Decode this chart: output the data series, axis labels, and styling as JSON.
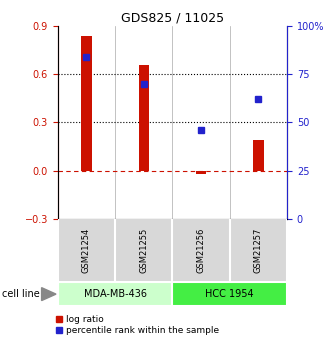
{
  "title": "GDS825 / 11025",
  "samples": [
    "GSM21254",
    "GSM21255",
    "GSM21256",
    "GSM21257"
  ],
  "log_ratios": [
    0.84,
    0.66,
    -0.02,
    0.19
  ],
  "percentile_ranks": [
    84,
    70,
    46,
    62
  ],
  "cell_lines": [
    {
      "label": "MDA-MB-436",
      "samples": [
        0,
        1
      ],
      "color": "#ccffcc"
    },
    {
      "label": "HCC 1954",
      "samples": [
        2,
        3
      ],
      "color": "#44ee44"
    }
  ],
  "bar_color": "#cc1100",
  "dot_color": "#2222cc",
  "ylim_left": [
    -0.3,
    0.9
  ],
  "ylim_right": [
    0,
    100
  ],
  "yticks_left": [
    -0.3,
    0.0,
    0.3,
    0.6,
    0.9
  ],
  "yticks_right": [
    0,
    25,
    50,
    75,
    100
  ],
  "ytick_labels_right": [
    "0",
    "25",
    "50",
    "75",
    "100%"
  ],
  "hline_y": 0.0,
  "dotted_lines": [
    0.3,
    0.6
  ],
  "background_color": "#ffffff",
  "bar_width": 0.18,
  "legend_log_ratio": "log ratio",
  "legend_percentile": "percentile rank within the sample",
  "cell_line_label": "cell line"
}
